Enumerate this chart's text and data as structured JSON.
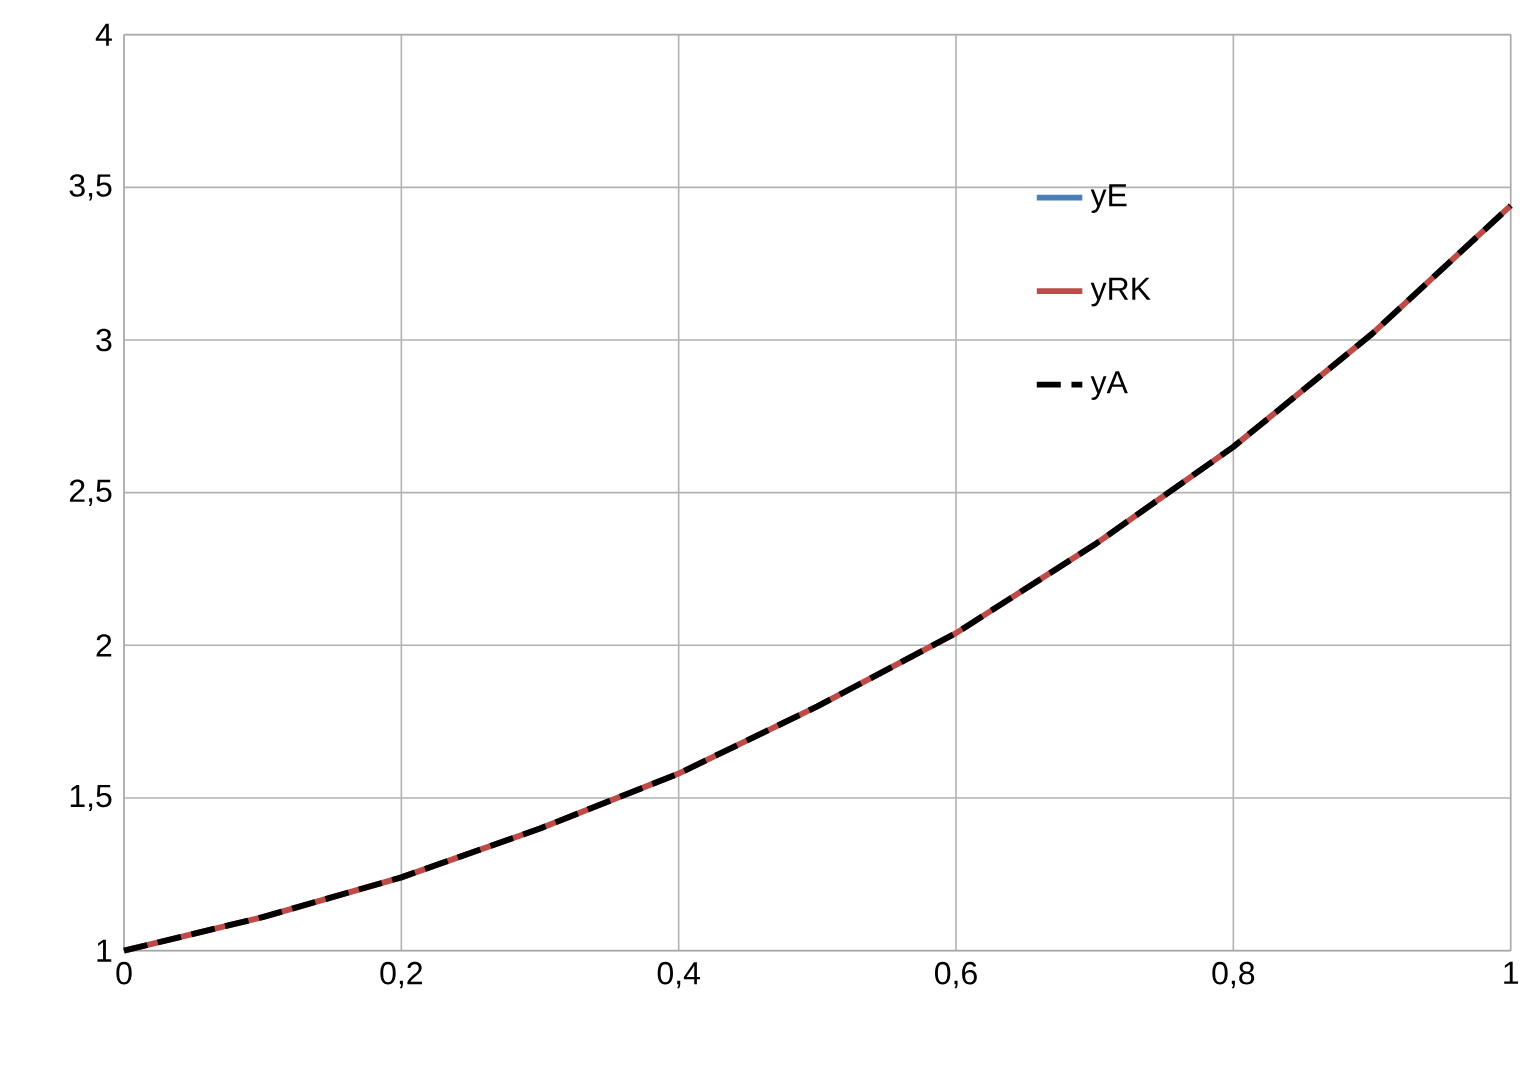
{
  "chart_data": {
    "type": "line",
    "x": [
      0,
      0.1,
      0.2,
      0.3,
      0.4,
      0.5,
      0.6,
      0.7,
      0.8,
      0.9,
      1
    ],
    "series": [
      {
        "name": "yE",
        "color": "#4a7ebb",
        "line_style": "solid",
        "values": [
          null,
          null,
          null,
          null,
          null,
          null,
          null,
          null,
          null,
          null,
          null
        ]
      },
      {
        "name": "yRK",
        "color": "#be4b48",
        "line_style": "solid",
        "values": [
          1,
          1.11,
          1.24,
          1.4,
          1.58,
          1.8,
          2.04,
          2.33,
          2.65,
          3.02,
          3.44
        ]
      },
      {
        "name": "yA",
        "color": "#000000",
        "line_style": "dashed",
        "values": [
          1,
          1.11,
          1.24,
          1.4,
          1.58,
          1.8,
          2.04,
          2.33,
          2.65,
          3.02,
          3.44
        ]
      }
    ],
    "xlim": [
      0,
      1
    ],
    "xticks": [
      0,
      {
        "value": 0.2,
        "label": "0,2"
      },
      {
        "value": 0.4,
        "label": "0,4"
      },
      {
        "value": 0.6,
        "label": "0,6"
      },
      {
        "value": 0.8,
        "label": "0,8"
      },
      1
    ],
    "ylim": [
      1,
      4
    ],
    "yticks": [
      1,
      {
        "value": 1.5,
        "label": "1,5"
      },
      2,
      {
        "value": 2.5,
        "label": "2,5"
      },
      3,
      {
        "value": 3.5,
        "label": "3,5"
      },
      4
    ],
    "grid": true,
    "legend": "right",
    "marker": "none"
  }
}
